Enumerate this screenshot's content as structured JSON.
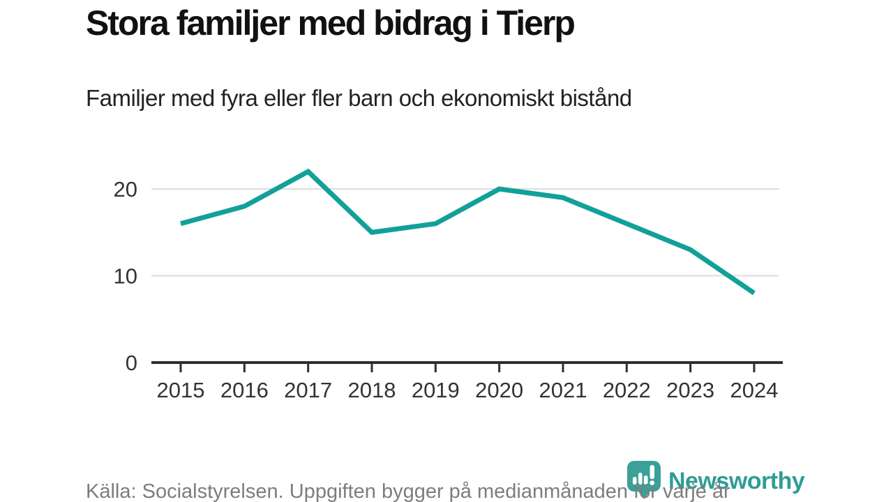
{
  "header": {
    "title": "Stora familjer med bidrag i Tierp",
    "subtitle": "Familjer med fyra eller fler barn och ekonomiskt bistånd"
  },
  "chart_data": {
    "type": "line",
    "title": "Stora familjer med bidrag i Tierp",
    "subtitle": "Familjer med fyra eller fler barn och ekonomiskt bistånd",
    "categories": [
      "2015",
      "2016",
      "2017",
      "2018",
      "2019",
      "2020",
      "2021",
      "2022",
      "2023",
      "2024"
    ],
    "values": [
      16,
      18,
      22,
      15,
      16,
      20,
      19,
      16,
      13,
      8
    ],
    "xlabel": "",
    "ylabel": "",
    "yticks": [
      0,
      10,
      20
    ],
    "ylim": [
      0,
      24
    ],
    "grid": "horizontal",
    "legend": "none",
    "line_color": "#12a099",
    "gridline_color": "#dddddd",
    "axis_color": "#2f2f2f",
    "tick_label_color": "#333333"
  },
  "footer": {
    "source": "Källa: Socialstyrelsen. Uppgiften bygger på medianmånaden för varje år",
    "brand": "Newsworthy"
  }
}
